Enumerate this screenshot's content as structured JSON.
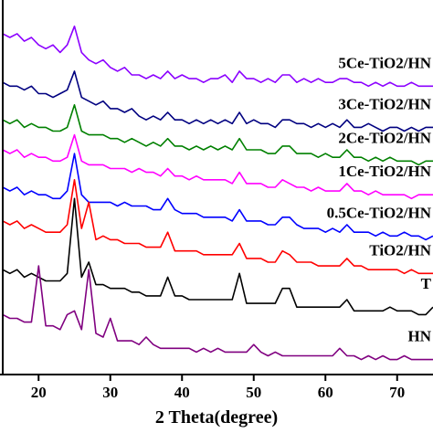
{
  "chart_data": {
    "type": "line",
    "xlabel": "2 Theta(degree)",
    "xlim": [
      15,
      75
    ],
    "xticks": [
      20,
      30,
      40,
      50,
      60,
      70
    ],
    "ylim": [
      0,
      100
    ],
    "x": [
      15,
      16,
      17,
      18,
      19,
      20,
      21,
      22,
      23,
      24,
      25,
      26,
      27,
      28,
      29,
      30,
      31,
      32,
      33,
      34,
      35,
      36,
      37,
      38,
      39,
      40,
      41,
      42,
      43,
      44,
      45,
      46,
      47,
      48,
      49,
      50,
      51,
      52,
      53,
      54,
      55,
      56,
      57,
      58,
      59,
      60,
      61,
      62,
      63,
      64,
      65,
      66,
      67,
      68,
      69,
      70,
      71,
      72,
      73,
      74,
      75
    ],
    "series": [
      {
        "name": "5Ce-TiO2/HN",
        "color": "#8b00ff",
        "values": [
          91,
          90,
          91,
          89,
          90,
          88,
          87,
          88,
          86,
          88,
          93,
          86,
          84,
          83,
          84,
          82,
          81,
          82,
          80,
          80,
          79,
          80,
          79,
          81,
          79,
          80,
          79,
          79,
          78,
          79,
          79,
          80,
          78,
          81,
          79,
          79,
          78,
          79,
          78,
          80,
          80,
          78,
          79,
          78,
          79,
          78,
          78,
          79,
          79,
          78,
          78,
          77,
          78,
          77,
          78,
          77,
          77,
          78,
          77,
          77,
          77
        ]
      },
      {
        "name": "3Ce-TiO2/HN",
        "color": "#000080",
        "values": [
          78,
          77,
          77,
          76,
          77,
          75,
          75,
          74,
          75,
          76,
          81,
          74,
          73,
          72,
          73,
          71,
          71,
          70,
          71,
          69,
          68,
          69,
          68,
          70,
          68,
          68,
          67,
          68,
          67,
          68,
          67,
          68,
          67,
          70,
          67,
          68,
          67,
          67,
          66,
          68,
          68,
          67,
          67,
          66,
          67,
          66,
          67,
          66,
          68,
          66,
          66,
          67,
          66,
          65,
          66,
          66,
          65,
          66,
          65,
          66,
          66
        ]
      },
      {
        "name": "2Ce-TiO2/HN",
        "color": "#008000",
        "values": [
          68,
          67,
          68,
          66,
          67,
          66,
          66,
          65,
          65,
          66,
          72,
          65,
          64,
          64,
          64,
          63,
          63,
          62,
          63,
          62,
          61,
          62,
          61,
          63,
          61,
          61,
          60,
          61,
          60,
          61,
          60,
          61,
          60,
          63,
          60,
          60,
          60,
          59,
          59,
          61,
          61,
          59,
          59,
          59,
          58,
          59,
          58,
          58,
          60,
          58,
          58,
          57,
          58,
          57,
          58,
          57,
          57,
          57,
          56,
          57,
          57
        ]
      },
      {
        "name": "1Ce-TiO2/HN",
        "color": "#ff00ff",
        "values": [
          60,
          59,
          60,
          58,
          59,
          58,
          58,
          57,
          57,
          58,
          64,
          57,
          56,
          56,
          56,
          55,
          55,
          55,
          54,
          55,
          54,
          54,
          53,
          55,
          53,
          53,
          52,
          53,
          52,
          52,
          52,
          52,
          51,
          54,
          51,
          51,
          51,
          50,
          50,
          52,
          51,
          50,
          50,
          49,
          50,
          49,
          49,
          49,
          51,
          49,
          49,
          48,
          49,
          48,
          48,
          48,
          48,
          47,
          48,
          48,
          48
        ]
      },
      {
        "name": "0.5Ce-TiO2/HN",
        "color": "#0000ff",
        "values": [
          50,
          49,
          50,
          48,
          49,
          48,
          48,
          47,
          47,
          49,
          59,
          48,
          46,
          46,
          46,
          46,
          45,
          46,
          45,
          45,
          45,
          44,
          44,
          47,
          44,
          43,
          43,
          43,
          42,
          42,
          42,
          42,
          41,
          44,
          41,
          41,
          41,
          40,
          40,
          42,
          42,
          40,
          39,
          39,
          39,
          38,
          39,
          38,
          40,
          38,
          38,
          38,
          37,
          38,
          37,
          37,
          38,
          37,
          37,
          36,
          37
        ]
      },
      {
        "name": "TiO2/HN",
        "color": "#ff0000",
        "values": [
          41,
          40,
          41,
          39,
          40,
          39,
          38,
          38,
          38,
          40,
          52,
          39,
          46,
          36,
          37,
          36,
          36,
          35,
          35,
          35,
          34,
          34,
          34,
          38,
          33,
          33,
          33,
          33,
          32,
          32,
          32,
          32,
          32,
          35,
          31,
          31,
          31,
          30,
          30,
          33,
          32,
          30,
          30,
          30,
          29,
          29,
          29,
          29,
          31,
          29,
          29,
          28,
          28,
          28,
          28,
          28,
          27,
          28,
          27,
          27,
          27
        ]
      },
      {
        "name": "T",
        "color": "#000000",
        "values": [
          28,
          27,
          28,
          26,
          27,
          26,
          25,
          25,
          25,
          27,
          47,
          26,
          30,
          24,
          24,
          23,
          23,
          23,
          22,
          22,
          21,
          21,
          21,
          26,
          21,
          21,
          20,
          20,
          20,
          20,
          20,
          20,
          20,
          27,
          19,
          19,
          19,
          19,
          19,
          23,
          23,
          18,
          18,
          18,
          18,
          18,
          18,
          18,
          20,
          17,
          17,
          17,
          17,
          17,
          18,
          17,
          17,
          17,
          16,
          16,
          18
        ]
      },
      {
        "name": "HN",
        "color": "#800080",
        "values": [
          16,
          15,
          15,
          14,
          14,
          29,
          13,
          13,
          12,
          16,
          17,
          12,
          28,
          11,
          10,
          15,
          9,
          9,
          9,
          8,
          10,
          8,
          7,
          7,
          7,
          7,
          7,
          6,
          7,
          6,
          7,
          6,
          6,
          6,
          6,
          8,
          6,
          5,
          6,
          5,
          5,
          5,
          5,
          5,
          5,
          5,
          5,
          7,
          5,
          5,
          4,
          5,
          4,
          5,
          4,
          4,
          5,
          4,
          4,
          4,
          4
        ]
      }
    ]
  }
}
